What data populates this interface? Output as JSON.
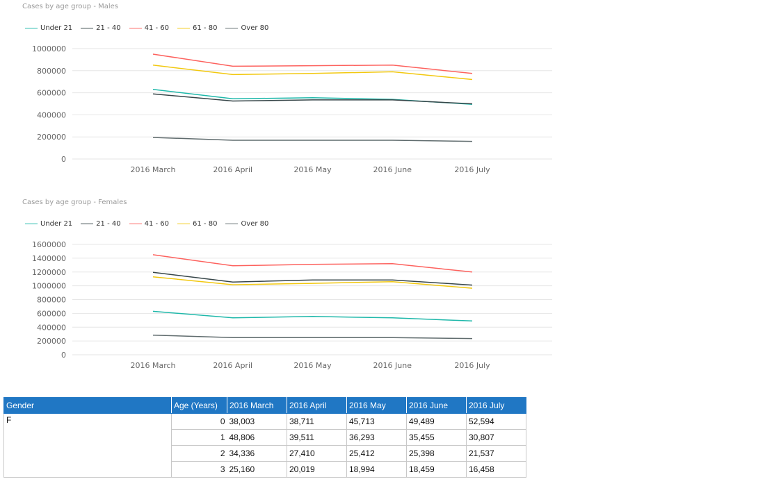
{
  "chart_data": [
    {
      "type": "line",
      "title": "Cases by age group - Males",
      "categories": [
        "2016 March",
        "2016 April",
        "2016 May",
        "2016 June",
        "2016 July"
      ],
      "yticks": [
        0,
        200000,
        400000,
        600000,
        800000,
        1000000
      ],
      "ylim": [
        0,
        1000000
      ],
      "grid": true,
      "legend_position": "top-left",
      "series": [
        {
          "name": "Under 21",
          "color": "#1fb8aa",
          "values": [
            630000,
            545000,
            555000,
            540000,
            495000
          ]
        },
        {
          "name": "21 - 40",
          "color": "#374649",
          "values": [
            590000,
            525000,
            535000,
            535000,
            500000
          ]
        },
        {
          "name": "41 - 60",
          "color": "#fd625e",
          "values": [
            950000,
            840000,
            845000,
            850000,
            775000
          ]
        },
        {
          "name": "61 - 80",
          "color": "#f2c80f",
          "values": [
            850000,
            765000,
            775000,
            790000,
            720000
          ]
        },
        {
          "name": "Over 80",
          "color": "#5f6b6d",
          "values": [
            195000,
            170000,
            170000,
            170000,
            160000
          ]
        }
      ]
    },
    {
      "type": "line",
      "title": "Cases by age group - Females",
      "categories": [
        "2016 March",
        "2016 April",
        "2016 May",
        "2016 June",
        "2016 July"
      ],
      "yticks": [
        0,
        200000,
        400000,
        600000,
        800000,
        1000000,
        1200000,
        1400000,
        1600000
      ],
      "ylim": [
        0,
        1600000
      ],
      "grid": true,
      "legend_position": "top-left",
      "series": [
        {
          "name": "Under 21",
          "color": "#1fb8aa",
          "values": [
            630000,
            535000,
            555000,
            535000,
            490000
          ]
        },
        {
          "name": "21 - 40",
          "color": "#374649",
          "values": [
            1195000,
            1055000,
            1085000,
            1085000,
            1010000
          ]
        },
        {
          "name": "41 - 60",
          "color": "#fd625e",
          "values": [
            1450000,
            1290000,
            1310000,
            1320000,
            1200000
          ]
        },
        {
          "name": "61 - 80",
          "color": "#f2c80f",
          "values": [
            1130000,
            1015000,
            1035000,
            1060000,
            965000
          ]
        },
        {
          "name": "Over 80",
          "color": "#5f6b6d",
          "values": [
            285000,
            250000,
            250000,
            250000,
            235000
          ]
        }
      ]
    }
  ],
  "table": {
    "headers": [
      "Gender",
      "Age (Years)",
      "2016 March",
      "2016 April",
      "2016 May",
      "2016 June",
      "2016 July"
    ],
    "gender": "F",
    "rows": [
      {
        "age": "0",
        "values": [
          "38,003",
          "38,711",
          "45,713",
          "49,489",
          "52,594"
        ]
      },
      {
        "age": "1",
        "values": [
          "48,806",
          "39,511",
          "36,293",
          "35,455",
          "30,807"
        ]
      },
      {
        "age": "2",
        "values": [
          "34,336",
          "27,410",
          "25,412",
          "25,398",
          "21,537"
        ]
      },
      {
        "age": "3",
        "values": [
          "25,160",
          "20,019",
          "18,994",
          "18,459",
          "16,458"
        ]
      }
    ]
  }
}
